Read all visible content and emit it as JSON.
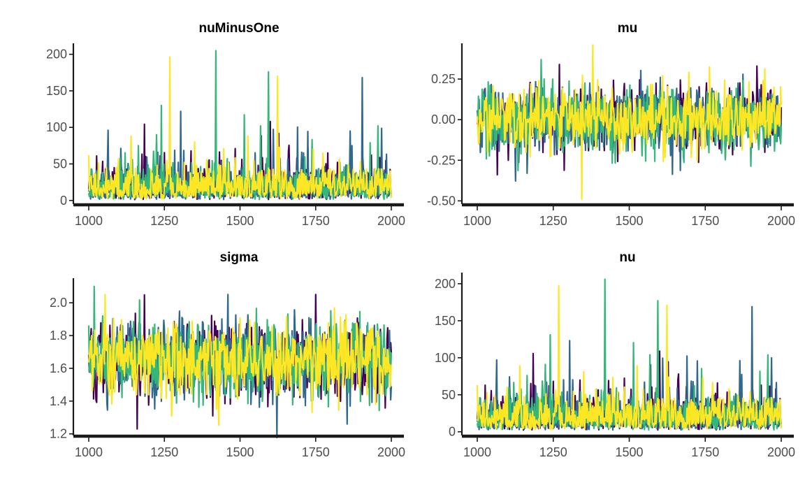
{
  "chart_data": [
    {
      "type": "line",
      "title": "nuMinusOne",
      "x_range": [
        1000,
        2000
      ],
      "ylim": [
        -5,
        215
      ],
      "x_ticks": [
        1000,
        1250,
        1500,
        1750,
        2000
      ],
      "y_ticks": [
        0,
        50,
        100,
        150,
        200
      ],
      "y_tick_labels": [
        "0",
        "50",
        "100",
        "150",
        "200"
      ],
      "generator": {
        "kind": "heavy",
        "base": 16,
        "spread": 14,
        "low": 1.2
      },
      "series": [
        {
          "color": "#440154",
          "seed": 11,
          "spikes": [
            [
              1600,
              108
            ],
            [
              1790,
              65
            ],
            [
              1935,
              62
            ]
          ]
        },
        {
          "color": "#31688E",
          "seed": 23,
          "spikes": [
            [
              1065,
              96
            ],
            [
              1305,
              122
            ],
            [
              1465,
              52
            ],
            [
              1865,
              95
            ],
            [
              1905,
              168
            ]
          ]
        },
        {
          "color": "#35B779",
          "seed": 37,
          "spikes": [
            [
              1240,
              130
            ],
            [
              1420,
              205
            ],
            [
              1595,
              176
            ],
            [
              1225,
              90
            ],
            [
              1165,
              75
            ]
          ]
        },
        {
          "color": "#FDE725",
          "seed": 51,
          "spikes": [
            [
              1268,
              196
            ],
            [
              1625,
              170
            ],
            [
              1140,
              88
            ],
            [
              1350,
              80
            ]
          ]
        }
      ],
      "grid": false,
      "legend": "none"
    },
    {
      "type": "line",
      "title": "mu",
      "x_range": [
        1000,
        2000
      ],
      "ylim": [
        -0.52,
        0.47
      ],
      "x_ticks": [
        1000,
        1250,
        1500,
        1750,
        2000
      ],
      "y_ticks": [
        -0.5,
        -0.25,
        0.0,
        0.25
      ],
      "y_tick_labels": [
        "-0.50",
        "-0.25",
        "0.00",
        "0.25"
      ],
      "generator": {
        "kind": "normal",
        "mean": 0.0,
        "sd": 0.1
      },
      "series": [
        {
          "color": "#440154",
          "seed": 61,
          "spikes": [
            [
              1270,
              0.34
            ],
            [
              1920,
              0.33
            ]
          ]
        },
        {
          "color": "#31688E",
          "seed": 73,
          "spikes": [
            [
              1165,
              -0.33
            ]
          ]
        },
        {
          "color": "#35B779",
          "seed": 89,
          "spikes": [
            [
              1210,
              0.37
            ]
          ]
        },
        {
          "color": "#FDE725",
          "seed": 97,
          "spikes": [
            [
              1380,
              0.46
            ],
            [
              1345,
              -0.49
            ]
          ]
        }
      ],
      "grid": false,
      "legend": "none"
    },
    {
      "type": "line",
      "title": "sigma",
      "x_range": [
        1000,
        2000
      ],
      "ylim": [
        1.19,
        2.15
      ],
      "x_ticks": [
        1000,
        1250,
        1500,
        1750,
        2000
      ],
      "y_ticks": [
        1.2,
        1.4,
        1.6,
        1.8,
        2.0
      ],
      "y_tick_labels": [
        "1.2",
        "1.4",
        "1.6",
        "1.8",
        "2.0"
      ],
      "generator": {
        "kind": "normal",
        "mean": 1.66,
        "sd": 0.12
      },
      "series": [
        {
          "color": "#440154",
          "seed": 101,
          "spikes": [
            [
              1160,
              1.23
            ],
            [
              1750,
              2.05
            ]
          ]
        },
        {
          "color": "#31688E",
          "seed": 113,
          "spikes": [
            [
              1855,
              1.26
            ],
            [
              1460,
              2.05
            ]
          ]
        },
        {
          "color": "#35B779",
          "seed": 127,
          "spikes": [
            [
              1018,
              2.1
            ]
          ]
        },
        {
          "color": "#FDE725",
          "seed": 139,
          "spikes": [
            [
              1055,
              2.05
            ],
            [
              1275,
              1.31
            ]
          ]
        }
      ],
      "grid": false,
      "legend": "none"
    },
    {
      "type": "line",
      "title": "nu",
      "x_range": [
        1000,
        2000
      ],
      "ylim": [
        -5,
        215
      ],
      "x_ticks": [
        1000,
        1250,
        1500,
        1750,
        2000
      ],
      "y_ticks": [
        0,
        50,
        100,
        150,
        200
      ],
      "y_tick_labels": [
        "0",
        "50",
        "100",
        "150",
        "200"
      ],
      "generator": {
        "kind": "heavy",
        "base": 17,
        "spread": 14,
        "low": 2.2
      },
      "series": [
        {
          "color": "#440154",
          "seed": 11,
          "spikes": [
            [
              1600,
              109
            ],
            [
              1790,
              66
            ],
            [
              1935,
              63
            ]
          ]
        },
        {
          "color": "#31688E",
          "seed": 23,
          "spikes": [
            [
              1065,
              97
            ],
            [
              1305,
              123
            ],
            [
              1465,
              53
            ],
            [
              1865,
              96
            ],
            [
              1905,
              169
            ]
          ]
        },
        {
          "color": "#35B779",
          "seed": 37,
          "spikes": [
            [
              1240,
              131
            ],
            [
              1420,
              206
            ],
            [
              1595,
              177
            ],
            [
              1225,
              91
            ],
            [
              1165,
              76
            ]
          ]
        },
        {
          "color": "#FDE725",
          "seed": 51,
          "spikes": [
            [
              1268,
              197
            ],
            [
              1625,
              171
            ],
            [
              1140,
              89
            ],
            [
              1350,
              81
            ]
          ]
        }
      ],
      "grid": false,
      "legend": "none"
    }
  ]
}
